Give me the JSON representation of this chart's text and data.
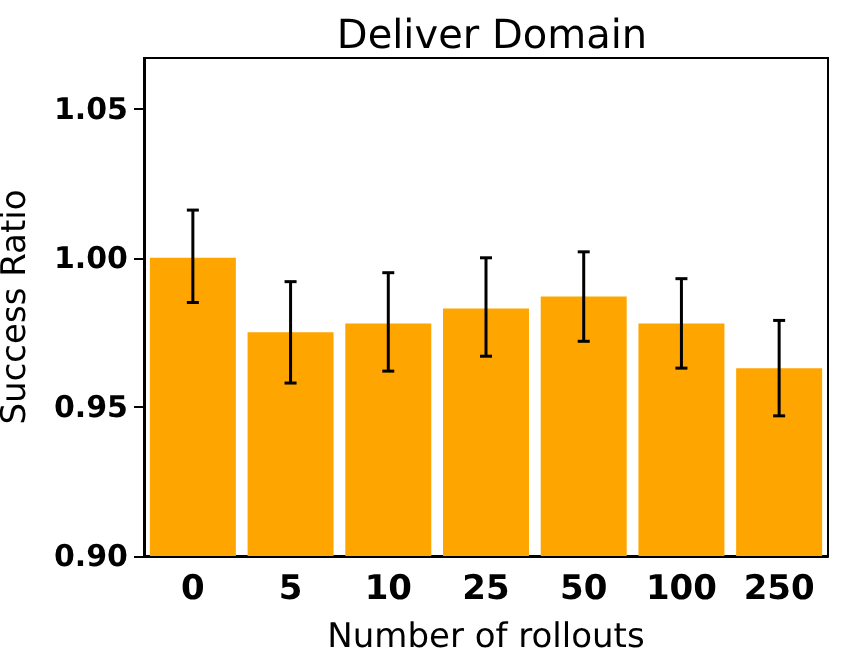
{
  "chart_data": {
    "type": "bar",
    "title": "Deliver Domain",
    "xlabel": "Number of rollouts",
    "ylabel": "Success Ratio",
    "categories": [
      "0",
      "5",
      "10",
      "25",
      "50",
      "100",
      "250"
    ],
    "values": [
      1.0,
      0.975,
      0.978,
      0.983,
      0.987,
      0.978,
      0.963
    ],
    "errors": [
      [
        0.985,
        1.016
      ],
      [
        0.958,
        0.992
      ],
      [
        0.962,
        0.995
      ],
      [
        0.967,
        1.0
      ],
      [
        0.972,
        1.002
      ],
      [
        0.963,
        0.993
      ],
      [
        0.947,
        0.979
      ]
    ],
    "color": "#ffa500",
    "ylim": [
      0.9,
      1.067
    ],
    "yticks": [
      {
        "value": 0.9,
        "label": "0.90"
      },
      {
        "value": 0.95,
        "label": "0.95"
      },
      {
        "value": 1.0,
        "label": "1.00"
      },
      {
        "value": 1.05,
        "label": "1.05"
      }
    ],
    "grid": false
  }
}
